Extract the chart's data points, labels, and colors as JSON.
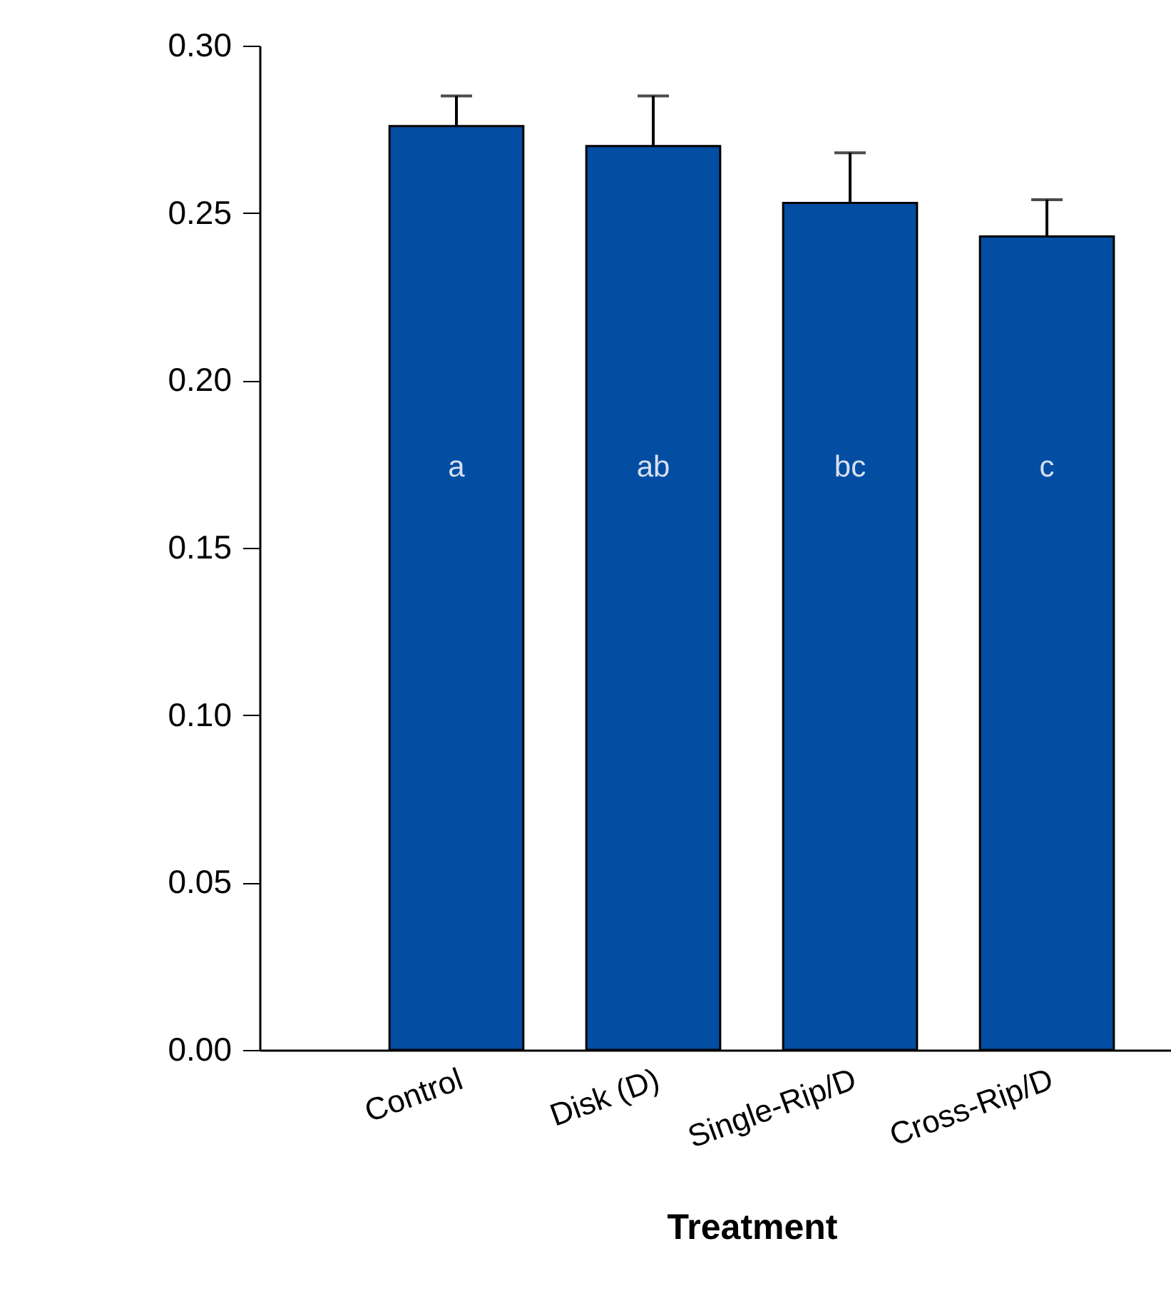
{
  "chart_data": {
    "type": "bar",
    "xlabel": "Treatment",
    "categories": [
      "Control",
      "Disk (D)",
      "Single-Rip/D",
      "Cross-Rip/D"
    ],
    "values": [
      0.276,
      0.27,
      0.253,
      0.243
    ],
    "errors": [
      [
        0.276,
        0.285
      ],
      [
        0.27,
        0.285
      ],
      [
        0.253,
        0.268
      ],
      [
        0.243,
        0.254
      ]
    ],
    "color": "#034ea2",
    "ylim": [
      0,
      0.3
    ],
    "yticks": [
      {
        "value": 0,
        "label": "0.00"
      },
      {
        "value": 0.05,
        "label": "0.05"
      },
      {
        "value": 0.1,
        "label": "0.10"
      },
      {
        "value": 0.15,
        "label": "0.15"
      },
      {
        "value": 0.2,
        "label": "0.20"
      },
      {
        "value": 0.25,
        "label": "0.25"
      },
      {
        "value": 0.3,
        "label": "0.30"
      }
    ],
    "grid": false,
    "annotations": [
      "a",
      "ab",
      "bc",
      "c"
    ]
  }
}
